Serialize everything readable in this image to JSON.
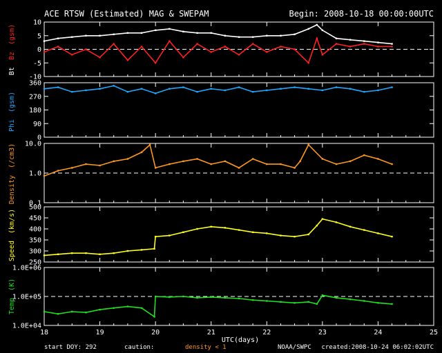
{
  "header": {
    "title": "ACE RTSW (Estimated) MAG & SWEPAM",
    "begin": "Begin: 2008-10-18 00:00:00UTC"
  },
  "footer": {
    "start_doy": "start DOY: 292",
    "caution": "caution:",
    "density_note": "density < 1",
    "source": "NOAA/SWPC",
    "created": "created:2008-10-24 06:02:02UTC"
  },
  "xaxis": {
    "label": "UTC(days)",
    "range": [
      18,
      25
    ],
    "ticks": [
      "18",
      "19",
      "20",
      "21",
      "22",
      "23",
      "24",
      "25"
    ]
  },
  "colors": {
    "bt": "#ffffff",
    "bz": "#ff2020",
    "phi": "#20a8ff",
    "density": "#ff9a20",
    "speed": "#ffff20",
    "temp": "#20e020"
  },
  "chart_data": [
    {
      "type": "scatter",
      "panel": "mag",
      "ylabel_parts": [
        "Bt",
        "Bz",
        "(gsm)"
      ],
      "ylim": [
        -10,
        10
      ],
      "yticks": [
        "10",
        "5",
        "0",
        "-5",
        "-10"
      ],
      "reference_line": 0,
      "series": [
        {
          "name": "Bt",
          "x": [
            18.0,
            18.25,
            18.5,
            18.75,
            19.0,
            19.25,
            19.5,
            19.75,
            20.0,
            20.25,
            20.5,
            20.75,
            21.0,
            21.25,
            21.5,
            21.75,
            22.0,
            22.25,
            22.5,
            22.75,
            22.9,
            23.0,
            23.25,
            23.5,
            23.75,
            24.0,
            24.25
          ],
          "values": [
            3,
            4,
            4.5,
            5,
            5,
            5.5,
            6,
            6,
            7,
            7.5,
            6.5,
            6,
            6,
            5,
            4.5,
            4.5,
            5,
            5,
            5.5,
            7.5,
            9,
            7,
            4,
            3.5,
            3,
            2.5,
            2
          ]
        },
        {
          "name": "Bz",
          "x": [
            18.0,
            18.25,
            18.5,
            18.75,
            19.0,
            19.25,
            19.5,
            19.75,
            20.0,
            20.25,
            20.5,
            20.75,
            21.0,
            21.25,
            21.5,
            21.75,
            22.0,
            22.25,
            22.5,
            22.75,
            22.9,
            23.0,
            23.25,
            23.5,
            23.75,
            24.0,
            24.25
          ],
          "values": [
            -1,
            1,
            -2,
            0,
            -3,
            2,
            -4,
            1,
            -5,
            3,
            -3,
            2,
            -1,
            1,
            -2,
            2,
            -1,
            1,
            0,
            -5,
            4,
            -2,
            2,
            1,
            2,
            1,
            1
          ]
        }
      ]
    },
    {
      "type": "scatter",
      "panel": "phi",
      "ylabel_parts": [
        "Phi",
        "(gsm)"
      ],
      "ylim": [
        0,
        360
      ],
      "yticks": [
        "360",
        "270",
        "180",
        "90",
        "0"
      ],
      "series": [
        {
          "name": "Phi",
          "x": [
            18.0,
            18.25,
            18.5,
            18.75,
            19.0,
            19.25,
            19.5,
            19.75,
            20.0,
            20.25,
            20.5,
            20.75,
            21.0,
            21.25,
            21.5,
            21.75,
            22.0,
            22.25,
            22.5,
            22.75,
            23.0,
            23.25,
            23.5,
            23.75,
            24.0,
            24.25
          ],
          "values": [
            320,
            330,
            300,
            310,
            320,
            340,
            300,
            320,
            290,
            320,
            330,
            300,
            320,
            310,
            330,
            300,
            310,
            320,
            330,
            320,
            310,
            330,
            320,
            300,
            310,
            330
          ]
        }
      ]
    },
    {
      "type": "scatter",
      "panel": "density",
      "ylabel_parts": [
        "Density",
        "(/cm3)"
      ],
      "yscale": "log",
      "ylim": [
        0.1,
        10
      ],
      "yticks": [
        "10.0",
        "1.0",
        "0.1"
      ],
      "reference_line": 1.0,
      "series": [
        {
          "name": "Density",
          "x": [
            18.0,
            18.25,
            18.5,
            18.75,
            19.0,
            19.25,
            19.5,
            19.75,
            19.9,
            20.0,
            20.25,
            20.5,
            20.75,
            21.0,
            21.25,
            21.5,
            21.75,
            22.0,
            22.25,
            22.5,
            22.6,
            22.75,
            23.0,
            23.25,
            23.5,
            23.75,
            24.0,
            24.25
          ],
          "values": [
            0.8,
            1.2,
            1.5,
            2.0,
            1.8,
            2.5,
            3.0,
            5.0,
            9.0,
            1.5,
            2.0,
            2.5,
            3.0,
            2.0,
            2.5,
            1.5,
            3.0,
            2.0,
            2.0,
            1.5,
            2.5,
            9.0,
            3.0,
            2.0,
            2.5,
            4.0,
            3.0,
            2.0
          ]
        }
      ]
    },
    {
      "type": "scatter",
      "panel": "speed",
      "ylabel_parts": [
        "Speed",
        "(km/s)"
      ],
      "ylim": [
        250,
        500
      ],
      "yticks": [
        "500",
        "450",
        "400",
        "350",
        "300",
        "250"
      ],
      "series": [
        {
          "name": "Speed",
          "x": [
            18.0,
            18.25,
            18.5,
            18.75,
            19.0,
            19.25,
            19.5,
            19.75,
            19.98,
            20.0,
            20.25,
            20.5,
            20.75,
            21.0,
            21.25,
            21.5,
            21.75,
            22.0,
            22.25,
            22.5,
            22.75,
            22.9,
            23.0,
            23.25,
            23.5,
            23.75,
            24.0,
            24.25
          ],
          "values": [
            280,
            285,
            290,
            290,
            285,
            290,
            300,
            305,
            310,
            365,
            370,
            385,
            400,
            410,
            405,
            395,
            385,
            380,
            370,
            365,
            375,
            415,
            445,
            430,
            410,
            395,
            380,
            365
          ]
        }
      ]
    },
    {
      "type": "scatter",
      "panel": "temp",
      "ylabel_parts": [
        "Temp",
        "(K)"
      ],
      "yscale": "log",
      "ylim": [
        10000,
        1000000
      ],
      "yticks": [
        "1.0E+06",
        "1.0E+05",
        "1.0E+04"
      ],
      "reference_line": 100000,
      "series": [
        {
          "name": "Temp",
          "x": [
            18.0,
            18.25,
            18.5,
            18.75,
            19.0,
            19.25,
            19.5,
            19.75,
            19.98,
            20.0,
            20.25,
            20.5,
            20.75,
            21.0,
            21.25,
            21.5,
            21.75,
            22.0,
            22.25,
            22.5,
            22.75,
            22.9,
            23.0,
            23.25,
            23.5,
            23.75,
            24.0,
            24.25
          ],
          "values": [
            30000,
            25000,
            30000,
            28000,
            35000,
            40000,
            45000,
            40000,
            20000,
            100000,
            95000,
            100000,
            90000,
            95000,
            90000,
            85000,
            75000,
            70000,
            65000,
            60000,
            65000,
            55000,
            110000,
            90000,
            80000,
            70000,
            60000,
            55000
          ]
        }
      ]
    }
  ]
}
